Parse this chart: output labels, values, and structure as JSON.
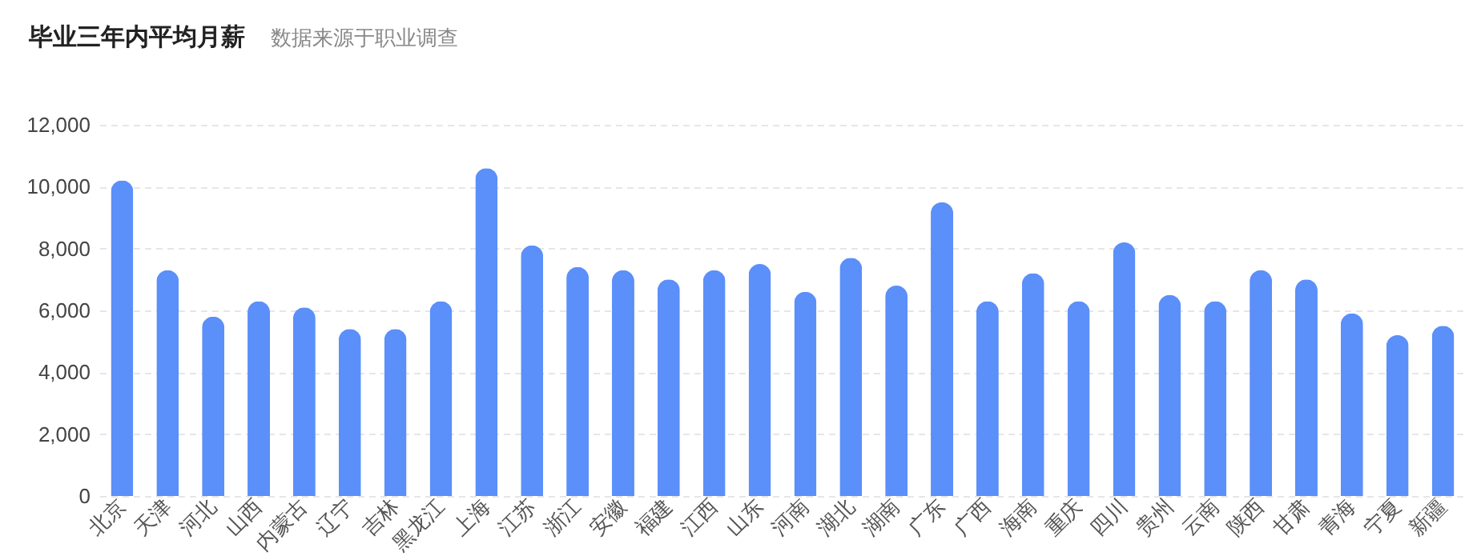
{
  "chart_data": {
    "type": "bar",
    "title": "毕业三年内平均月薪",
    "subtitle": "数据来源于职业调查",
    "categories": [
      "北京",
      "天津",
      "河北",
      "山西",
      "内蒙古",
      "辽宁",
      "吉林",
      "黑龙江",
      "上海",
      "江苏",
      "浙江",
      "安徽",
      "福建",
      "江西",
      "山东",
      "河南",
      "湖北",
      "湖南",
      "广东",
      "广西",
      "海南",
      "重庆",
      "四川",
      "贵州",
      "云南",
      "陕西",
      "甘肃",
      "青海",
      "宁夏",
      "新疆"
    ],
    "values": [
      10200,
      7300,
      5800,
      6300,
      6100,
      5400,
      5400,
      6300,
      10600,
      8100,
      7400,
      7300,
      7000,
      7300,
      7500,
      6600,
      7700,
      6800,
      9500,
      6300,
      7200,
      6300,
      8200,
      6500,
      6300,
      7300,
      7000,
      5900,
      5200,
      5500
    ],
    "color": "#5b8ff9",
    "ylim": [
      0,
      12000
    ],
    "yticks": [
      {
        "value": 0,
        "label": "0"
      },
      {
        "value": 2000,
        "label": "2,000"
      },
      {
        "value": 4000,
        "label": "4,000"
      },
      {
        "value": 6000,
        "label": "6,000"
      },
      {
        "value": 8000,
        "label": "8,000"
      },
      {
        "value": 10000,
        "label": "10,000"
      },
      {
        "value": 12000,
        "label": "12,000"
      }
    ],
    "grid": "y"
  }
}
